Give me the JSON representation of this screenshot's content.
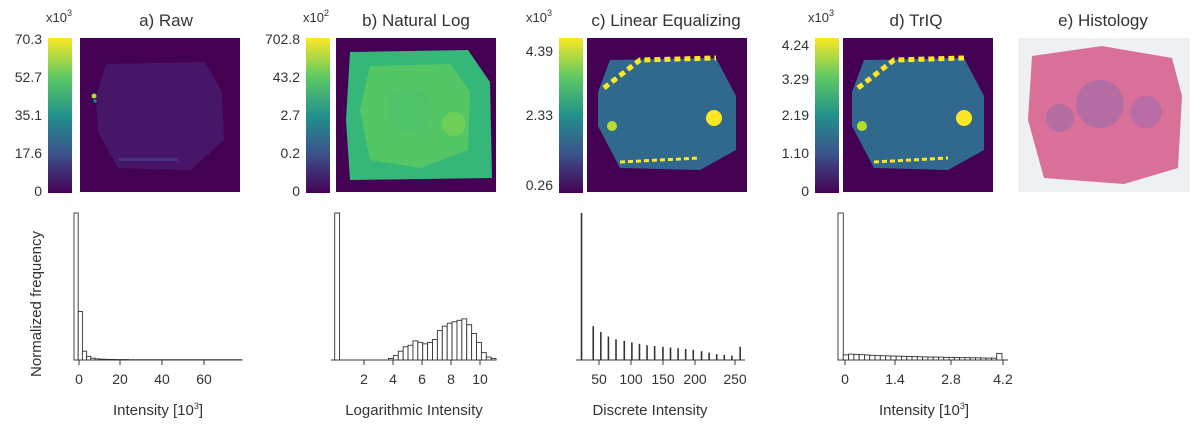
{
  "figure": {
    "ylabel_shared": "Normalized frequency",
    "colors": {
      "hist_fill": "#ffffff",
      "hist_stroke": "#333333",
      "axis": "#333333",
      "tissue_pink": "#d9709a"
    }
  },
  "chart_data": [
    {
      "type": "heatmap",
      "title": "a) Raw",
      "colormap": "viridis",
      "colorbar": {
        "unit_base": "x10",
        "unit_exp": "3",
        "ticks": [
          "70.3",
          "52.7",
          "35.1",
          "17.6",
          "0"
        ]
      },
      "histogram": {
        "type": "bar",
        "xlabel_base": "Intensity [10",
        "xlabel_exp": "3",
        "xlabel_end": "]",
        "xlim": [
          0,
          72
        ],
        "xticks": [
          "0",
          "20",
          "40",
          "60"
        ],
        "bin_width": 1.8,
        "values": [
          1.0,
          0.33,
          0.06,
          0.025,
          0.012,
          0.008,
          0.006,
          0.005,
          0.004,
          0.004,
          0.003,
          0.003,
          0.003,
          0.002,
          0.002,
          0.002,
          0.002,
          0.002,
          0.002,
          0.002,
          0.002,
          0.002,
          0.002,
          0.002,
          0.002,
          0.002,
          0.002,
          0.002,
          0.002,
          0.002,
          0.002,
          0.002,
          0.002,
          0.002,
          0.002,
          0.002,
          0.002,
          0.002,
          0.002,
          0.002
        ]
      }
    },
    {
      "type": "heatmap",
      "title": "b) Natural Log",
      "colormap": "viridis",
      "colorbar": {
        "unit_base": "x10",
        "unit_exp": "2",
        "ticks": [
          "702.8",
          "43.2",
          "2.7",
          "0.2",
          "0"
        ]
      },
      "histogram": {
        "type": "bar",
        "xlabel": "Logarithmic Intensity",
        "xlim": [
          0,
          11
        ],
        "xticks": [
          "2",
          "4",
          "6",
          "8",
          "10"
        ],
        "bin_width": 0.33,
        "values": [
          1.0,
          0.0,
          0.0,
          0.0,
          0.0,
          0.0,
          0.0,
          0.0,
          0.0,
          0.0,
          0.0,
          0.01,
          0.03,
          0.06,
          0.09,
          0.1,
          0.13,
          0.12,
          0.11,
          0.12,
          0.14,
          0.2,
          0.23,
          0.25,
          0.26,
          0.27,
          0.28,
          0.24,
          0.18,
          0.12,
          0.05,
          0.02,
          0.01
        ]
      }
    },
    {
      "type": "heatmap",
      "title": "c) Linear Equalizing",
      "colormap": "viridis",
      "colorbar": {
        "unit_base": "x10",
        "unit_exp": "3",
        "ticks": [
          "4.39",
          "2.33",
          "0.26"
        ]
      },
      "histogram": {
        "type": "bar",
        "xlabel": "Discrete Intensity",
        "xlim": [
          15,
          260
        ],
        "xticks": [
          "50",
          "100",
          "150",
          "200",
          "250"
        ],
        "x": [
          23,
          40,
          51,
          62,
          73,
          85,
          96,
          107,
          118,
          129,
          141,
          152,
          163,
          174,
          185,
          197,
          208,
          219,
          230,
          241,
          253
        ],
        "values": [
          1.0,
          0.23,
          0.19,
          0.16,
          0.14,
          0.13,
          0.12,
          0.11,
          0.1,
          0.095,
          0.09,
          0.085,
          0.08,
          0.075,
          0.07,
          0.06,
          0.05,
          0.04,
          0.035,
          0.03,
          0.09
        ]
      }
    },
    {
      "type": "heatmap",
      "title": "d) TrIQ",
      "colormap": "viridis",
      "colorbar": {
        "unit_base": "x10",
        "unit_exp": "3",
        "ticks": [
          "4.24",
          "3.29",
          "2.19",
          "1.10",
          "0"
        ]
      },
      "histogram": {
        "type": "bar",
        "xlabel_base": "Intensity [10",
        "xlabel_exp": "3",
        "xlabel_end": "]",
        "xlim": [
          -0.1,
          4.4
        ],
        "xticks": [
          "0",
          "1.4",
          "2.8",
          "4.2"
        ],
        "bin_width": 0.14,
        "values": [
          1.0,
          0.035,
          0.04,
          0.038,
          0.036,
          0.034,
          0.032,
          0.03,
          0.029,
          0.028,
          0.027,
          0.026,
          0.025,
          0.024,
          0.023,
          0.022,
          0.021,
          0.02,
          0.02,
          0.019,
          0.018,
          0.018,
          0.017,
          0.016,
          0.016,
          0.015,
          0.015,
          0.014,
          0.013,
          0.013,
          0.045
        ]
      }
    },
    {
      "type": "image",
      "title": "e) Histology"
    }
  ]
}
